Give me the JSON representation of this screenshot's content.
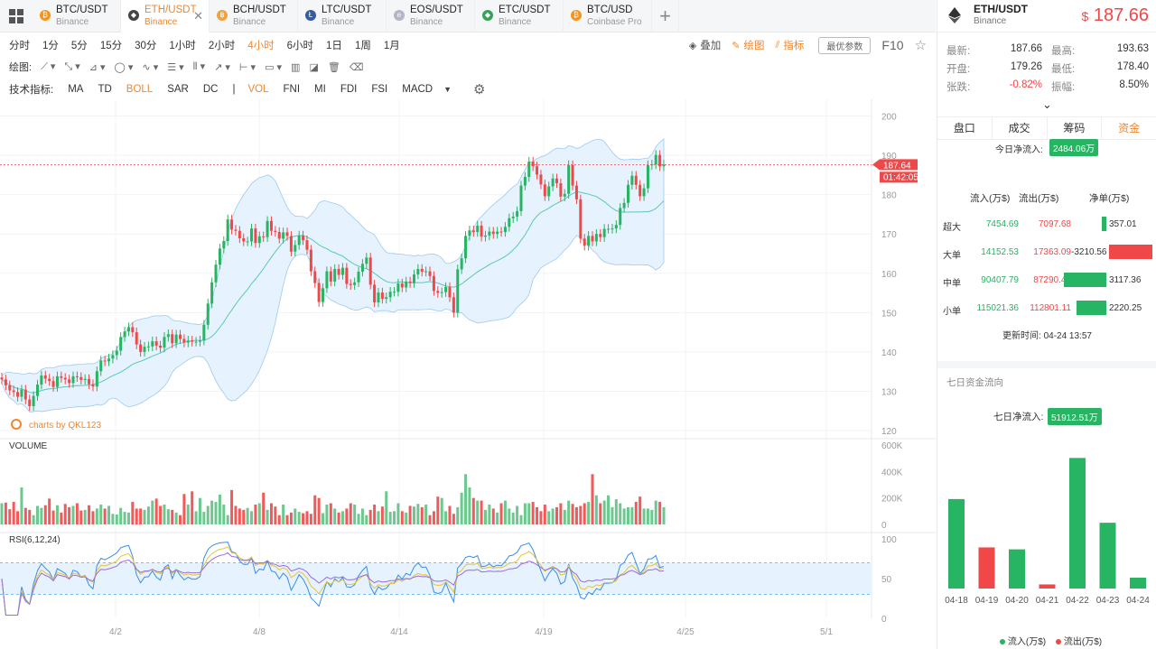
{
  "tabs": [
    {
      "pair": "BTC/USDT",
      "ex": "Binance",
      "color": "#f7931a",
      "glyph": "₿",
      "active": false
    },
    {
      "pair": "ETH/USDT",
      "ex": "Binance",
      "color": "#444",
      "glyph": "◆",
      "active": true
    },
    {
      "pair": "BCH/USDT",
      "ex": "Binance",
      "color": "#f0a33c",
      "glyph": "฿",
      "active": false
    },
    {
      "pair": "LTC/USDT",
      "ex": "Binance",
      "color": "#345d9d",
      "glyph": "Ł",
      "active": false
    },
    {
      "pair": "EOS/USDT",
      "ex": "Binance",
      "color": "#b5b5c8",
      "glyph": "e",
      "active": false
    },
    {
      "pair": "ETC/USDT",
      "ex": "Binance",
      "color": "#33a35a",
      "glyph": "◆",
      "active": false
    },
    {
      "pair": "BTC/USD",
      "ex": "Coinbase Pro",
      "color": "#f7931a",
      "glyph": "₿",
      "active": false
    }
  ],
  "timeframes": [
    "分时",
    "1分",
    "5分",
    "15分",
    "30分",
    "1小时",
    "2小时",
    "4小时",
    "6小时",
    "1日",
    "1周",
    "1月"
  ],
  "timeframe_active": "4小时",
  "toolbar": {
    "overlay": "叠加",
    "draw": "绘图",
    "indicator": "指标",
    "best_params": "最优参数",
    "f10": "F10"
  },
  "drawbar_label": "绘图:",
  "indicator_label": "技术指标:",
  "indicators_main": [
    "MA",
    "TD",
    "BOLL",
    "SAR",
    "DC"
  ],
  "indicators_sub": [
    "VOL",
    "FNI",
    "MI",
    "FDI",
    "FSI",
    "MACD"
  ],
  "indicators_active": [
    "BOLL",
    "VOL"
  ],
  "chart_data": {
    "type": "candlestick",
    "price_axis": {
      "ticks": [
        "200",
        "190",
        "180",
        "170",
        "160",
        "150",
        "140",
        "130",
        "120"
      ],
      "min": 120,
      "max": 200
    },
    "volume_label": "VOLUME",
    "volume_axis": {
      "ticks": [
        "600K",
        "400K",
        "200K",
        "0"
      ],
      "max": 600000
    },
    "rsi_label": "RSI(6,12,24)",
    "rsi_axis": {
      "ticks": [
        "100",
        "50",
        "0"
      ]
    },
    "x_ticks": [
      "4/2",
      "4/8",
      "4/14",
      "4/19",
      "4/25",
      "5/1"
    ],
    "last_price": "187.64",
    "countdown": "01:42:05",
    "watermark": "charts by QKL123",
    "closes": [
      133.0,
      131.5,
      130.2,
      129.8,
      128.6,
      130.4,
      127.9,
      126.2,
      128.8,
      131.7,
      134.0,
      133.2,
      132.6,
      131.1,
      133.8,
      133.4,
      133.0,
      132.1,
      133.8,
      133.6,
      132.9,
      133.1,
      131.8,
      131.2,
      135.1,
      137.8,
      137.6,
      138.3,
      139.2,
      140.3,
      143.8,
      145.2,
      146.3,
      145.0,
      141.9,
      140.0,
      141.3,
      141.4,
      142.7,
      141.6,
      141.1,
      143.8,
      144.5,
      142.2,
      144.4,
      143.3,
      142.4,
      142.9,
      142.6,
      142.6,
      142.9,
      146.9,
      152.3,
      157.7,
      162.2,
      166.3,
      168.2,
      173.7,
      171.1,
      170.8,
      168.9,
      168.1,
      168.1,
      171.4,
      167.7,
      169.4,
      169.2,
      173.3,
      170.8,
      170.5,
      168.8,
      170.4,
      169.5,
      165.5,
      167.2,
      169.6,
      168.4,
      166.0,
      160.5,
      157.5,
      152.7,
      156.2,
      160.5,
      157.9,
      161.1,
      159.6,
      161.4,
      157.3,
      157.0,
      157.7,
      160.4,
      162.4,
      164.0,
      157.1,
      152.6,
      155.1,
      153.5,
      153.9,
      155.3,
      155.3,
      157.4,
      156.4,
      157.9,
      157.5,
      159.7,
      161.1,
      160.4,
      160.5,
      159.3,
      155.5,
      155.0,
      155.2,
      156.5,
      153.9,
      150.0,
      161.0,
      163.8,
      169.5,
      170.9,
      170.5,
      172.1,
      169.3,
      169.6,
      170.6,
      170.0,
      170.6,
      170.5,
      171.8,
      174.0,
      174.4,
      175.8,
      182.3,
      184.5,
      188.4,
      187.2,
      185.1,
      182.6,
      179.6,
      182.1,
      184.1,
      182.9,
      179.5,
      180.2,
      187.5,
      182.3,
      178.8,
      168.8,
      167.0,
      169.5,
      168.1,
      170.0,
      169.2,
      171.3,
      171.3,
      171.4,
      172.3,
      176.6,
      177.9,
      182.5,
      184.8,
      182.5,
      179.6,
      181.6,
      187.5,
      187.7,
      190.1,
      187.2,
      187.64
    ],
    "volumes": [
      160,
      165,
      115,
      170,
      100,
      280,
      125,
      110,
      70,
      140,
      125,
      145,
      195,
      105,
      145,
      90,
      155,
      130,
      140,
      160,
      105,
      110,
      145,
      100,
      120,
      150,
      120,
      140,
      80,
      75,
      125,
      95,
      90,
      170,
      120,
      120,
      110,
      135,
      180,
      195,
      140,
      150,
      115,
      110,
      90,
      70,
      230,
      150,
      250,
      100,
      200,
      95,
      140,
      180,
      170,
      225,
      150,
      70,
      260,
      140,
      120,
      110,
      125,
      100,
      150,
      160,
      240,
      110,
      160,
      135,
      70,
      150,
      70,
      90,
      120,
      95,
      85,
      100,
      80,
      220,
      200,
      85,
      150,
      160,
      120,
      90,
      100,
      120,
      160,
      150,
      80,
      120,
      70,
      110,
      150,
      100,
      135,
      250,
      95,
      100,
      160,
      100,
      90,
      140,
      135,
      155,
      130,
      150,
      70,
      100,
      210,
      200,
      100,
      140,
      80,
      130,
      240,
      380,
      280,
      200,
      180,
      180,
      110,
      150,
      120,
      90,
      160,
      180,
      120,
      90,
      140,
      70,
      160,
      160,
      170,
      130,
      100,
      150,
      100,
      120,
      130,
      160,
      110,
      180,
      155,
      130,
      140,
      160,
      170,
      380,
      220,
      160,
      180,
      220,
      130,
      190,
      160,
      120,
      130,
      130,
      170,
      210,
      120,
      120,
      110,
      180,
      170,
      130,
      60,
      110
    ],
    "rsi6_hint": "rsi computed from closes"
  },
  "side": {
    "pair": "ETH/USDT",
    "exchange": "Binance",
    "currency": "$",
    "price": "187.66",
    "stats": [
      {
        "l1": "最新:",
        "v1": "187.66",
        "l2": "最高:",
        "v2": "193.63",
        "c1": "#333"
      },
      {
        "l1": "开盘:",
        "v1": "179.26",
        "l2": "最低:",
        "v2": "178.40",
        "c1": "#333"
      },
      {
        "l1": "张跌:",
        "v1": "-0.82%",
        "l2": "振幅:",
        "v2": "8.50%",
        "c1": "#f04848"
      }
    ],
    "tabs": [
      "盘口",
      "成交",
      "筹码",
      "资金"
    ],
    "tab_active": "资金",
    "today_net_label": "今日净流入:",
    "today_net": "2484.06万",
    "flow_headers": {
      "in": "流入(万$)",
      "out": "流出(万$)",
      "net": "净单(万$)"
    },
    "flows": [
      {
        "label": "超大",
        "in": "7454.69",
        "out": "7097.68",
        "net": "357.01",
        "net_value": 357.01
      },
      {
        "label": "大单",
        "in": "14152.53",
        "out": "17363.09",
        "net": "-3210.56",
        "net_value": -3210.56
      },
      {
        "label": "中单",
        "in": "90407.79",
        "out": "87290.44",
        "net": "3117.36",
        "net_value": 3117.36
      },
      {
        "label": "小单",
        "in": "115021.36",
        "out": "112801.11",
        "net": "2220.25",
        "net_value": 2220.25
      }
    ],
    "update_label": "更新时间:",
    "update_time": "04-24 13:57",
    "seven_title": "七日资金流向",
    "seven_net_label": "七日净流入:",
    "seven_net": "51912.51万",
    "seven_days": {
      "type": "bar",
      "categories": [
        "04-18",
        "04-19",
        "04-20",
        "04-21",
        "04-22",
        "04-23",
        "04-24"
      ],
      "values": [
        3700,
        1700,
        1620,
        170,
        5400,
        2720,
        450
      ],
      "directions": [
        "in",
        "out",
        "in",
        "out",
        "in",
        "in",
        "in"
      ]
    },
    "legend_in": "流入(万$)",
    "legend_out": "流出(万$)",
    "colors": {
      "up": "#27b463",
      "down": "#f04848",
      "accent": "#f0862e"
    }
  }
}
